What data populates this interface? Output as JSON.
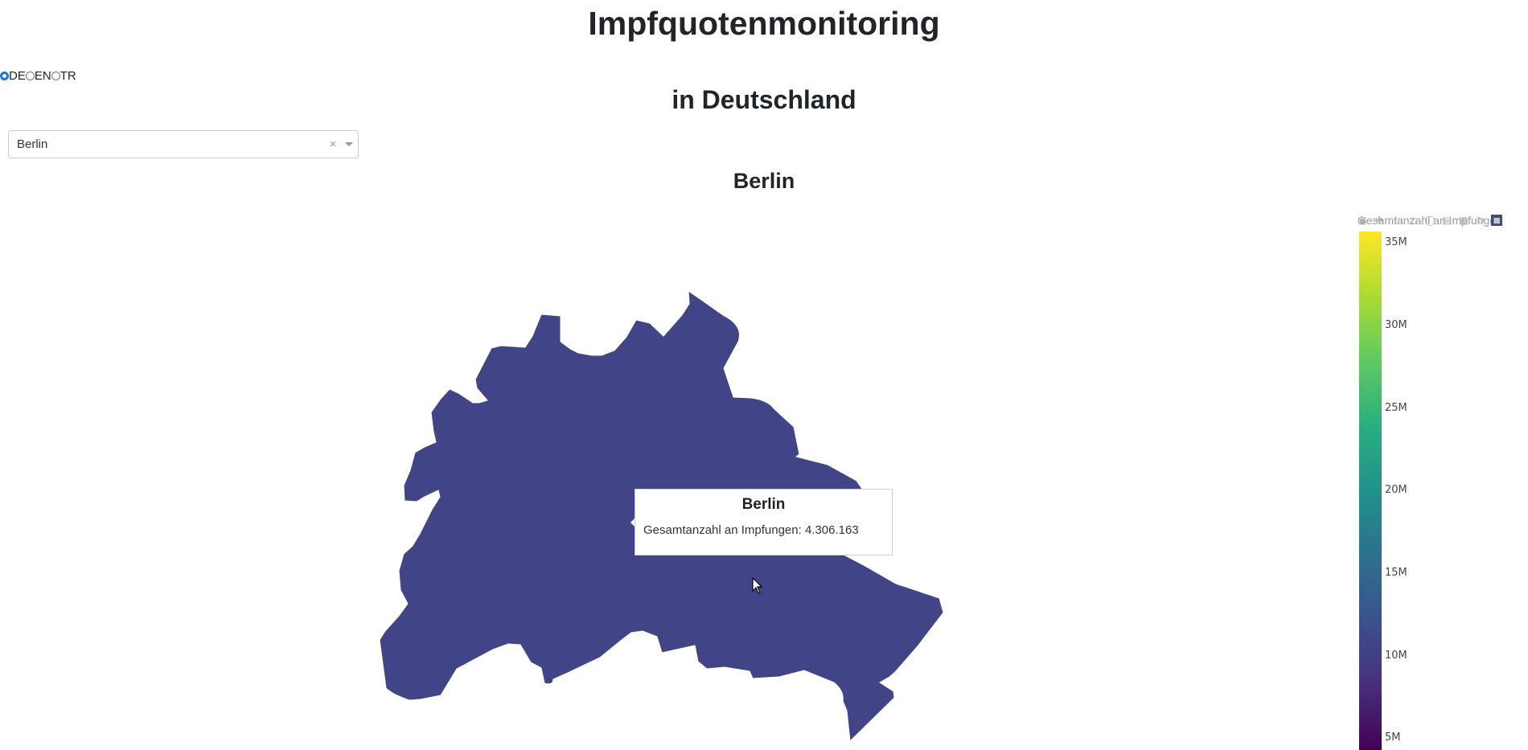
{
  "header": {
    "title": "Impfquotenmonitoring",
    "subtitle": "in Deutschland"
  },
  "language": {
    "options": [
      {
        "label": "DE",
        "selected": true
      },
      {
        "label": "EN",
        "selected": false
      },
      {
        "label": "TR",
        "selected": false
      }
    ]
  },
  "region_select": {
    "value": "Berlin",
    "clear_symbol": "×"
  },
  "map": {
    "title": "Berlin",
    "region_name": "Berlin",
    "fill_color": "#414487",
    "colorbar": {
      "title": "Gesamtanzahl an Impfungen",
      "colorscale": "viridis",
      "ticks": [
        "35M",
        "30M",
        "25M",
        "20M",
        "15M",
        "10M",
        "5M"
      ]
    },
    "tooltip": {
      "title": "Berlin",
      "text": "Gesamtanzahl an Impfungen: 4.306.163"
    },
    "modebar": [
      "camera-icon",
      "zoom-icon",
      "pan-icon",
      "select-icon",
      "lasso-icon",
      "zoom-in-icon",
      "zoom-out-icon",
      "reset-icon",
      "plotly-logo-icon"
    ]
  }
}
